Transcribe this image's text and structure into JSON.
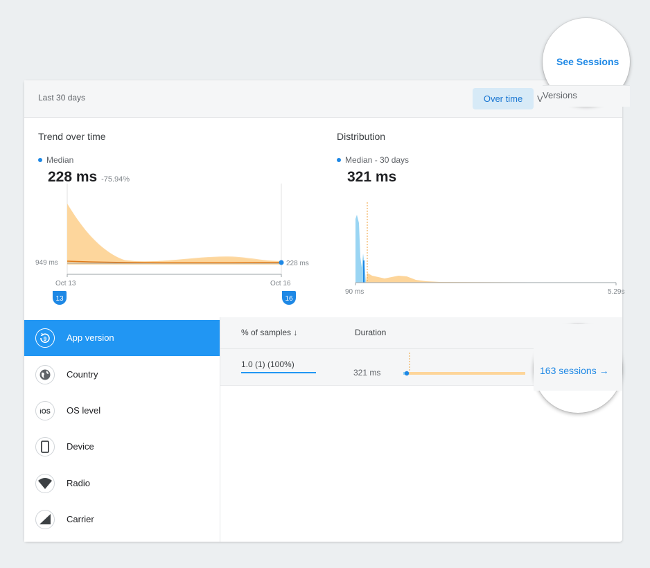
{
  "header": {
    "range": "Last 30 days",
    "toggle_over_time": "Over time",
    "toggle_versions": "Versions"
  },
  "trend": {
    "title": "Trend over time",
    "legend": "Median",
    "value": "228 ms",
    "change": "-75.94%",
    "y_start_label": "949 ms",
    "y_end_label": "228 ms",
    "x_start_label": "Oct 13",
    "x_end_label": "Oct 16",
    "start_marker": "13",
    "end_marker": "16"
  },
  "distribution": {
    "title": "Distribution",
    "legend": "Median - 30 days",
    "value": "321 ms",
    "x_min_label": "90 ms",
    "x_max_label": "5.29s"
  },
  "sidebar": {
    "items": [
      {
        "label": "App version",
        "icon": "app-version-icon",
        "active": true
      },
      {
        "label": "Country",
        "icon": "globe-icon",
        "active": false
      },
      {
        "label": "OS level",
        "icon": "ios-icon",
        "active": false
      },
      {
        "label": "Device",
        "icon": "device-icon",
        "active": false
      },
      {
        "label": "Radio",
        "icon": "wifi-icon",
        "active": false
      },
      {
        "label": "Carrier",
        "icon": "signal-icon",
        "active": false
      }
    ]
  },
  "table": {
    "col_samples": "% of samples",
    "col_duration": "Duration",
    "rows": [
      {
        "version": "1.0 (1) (100%)",
        "duration": "321 ms",
        "sessions": "163 sessions"
      }
    ]
  },
  "see_sessions": "See Sessions",
  "colors": {
    "accent": "#2196f3",
    "link": "#1e88e5",
    "area_orange": "#fdd59a",
    "median_line": "#e07b1a",
    "dist_blue": "#8fd0f2"
  }
}
